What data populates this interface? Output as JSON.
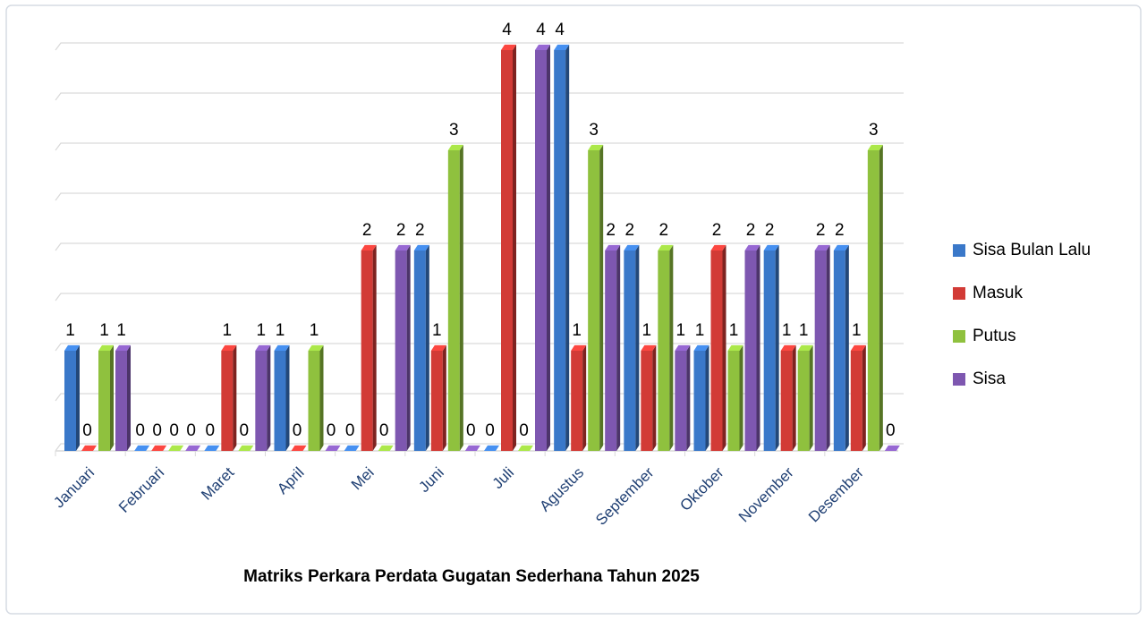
{
  "chart_data": {
    "type": "bar",
    "title": "Matriks Perkara Perdata Gugatan Sederhana Tahun 2025",
    "categories": [
      "Januari",
      "Februari",
      "Maret",
      "April",
      "Mei",
      "Juni",
      "Juli",
      "Agustus",
      "September",
      "Oktober",
      "November",
      "Desember"
    ],
    "series": [
      {
        "name": "Sisa Bulan Lalu",
        "color": "#3a78c9",
        "values": [
          1,
          0,
          0,
          1,
          0,
          2,
          0,
          4,
          2,
          1,
          2,
          2
        ]
      },
      {
        "name": "Masuk",
        "color": "#d23b36",
        "values": [
          0,
          0,
          1,
          0,
          2,
          1,
          4,
          1,
          1,
          2,
          1,
          1
        ]
      },
      {
        "name": "Putus",
        "color": "#8fc13e",
        "values": [
          1,
          0,
          0,
          1,
          0,
          3,
          0,
          3,
          2,
          1,
          1,
          3
        ]
      },
      {
        "name": "Sisa",
        "color": "#7e57b0",
        "values": [
          1,
          0,
          1,
          0,
          2,
          0,
          4,
          2,
          1,
          2,
          2,
          0
        ]
      }
    ],
    "ylim": [
      0,
      4
    ],
    "yticks": [
      0,
      0.5,
      1,
      1.5,
      2,
      2.5,
      3,
      3.5,
      4
    ],
    "grid": true,
    "legend": "right"
  }
}
